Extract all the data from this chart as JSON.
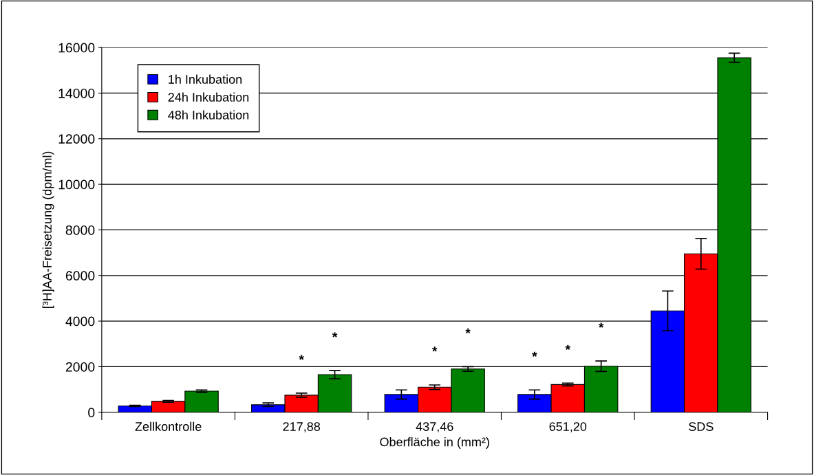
{
  "chart_data": {
    "type": "bar",
    "xlabel": "Oberfläche in (mm²)",
    "ylabel": "[³H]AA-Freisetzung (dpm/ml)",
    "categories": [
      "Zellkontrolle",
      "217,88",
      "437,46",
      "651,20",
      "SDS"
    ],
    "series": [
      {
        "name": "1h Inkubation",
        "color": "#0000ff",
        "values": [
          280,
          330,
          780,
          780,
          4450
        ],
        "errors": [
          30,
          80,
          200,
          200,
          870
        ],
        "value_labels": [
          null,
          null,
          null,
          "*",
          null
        ]
      },
      {
        "name": "24h Inkubation",
        "color": "#ff0000",
        "values": [
          480,
          750,
          1100,
          1220,
          6950
        ],
        "errors": [
          40,
          90,
          100,
          60,
          670
        ],
        "value_labels": [
          null,
          "*",
          "*",
          "*",
          null
        ]
      },
      {
        "name": "48h Inkubation",
        "color": "#008000",
        "values": [
          930,
          1650,
          1900,
          2020,
          15550
        ],
        "errors": [
          50,
          180,
          100,
          230,
          200
        ],
        "value_labels": [
          null,
          "*",
          "*",
          "*",
          null
        ]
      }
    ],
    "ylim": [
      0,
      16000
    ],
    "yticks": [
      0,
      2000,
      4000,
      6000,
      8000,
      10000,
      12000,
      14000,
      16000
    ],
    "grid": "y",
    "legend": "top left"
  }
}
